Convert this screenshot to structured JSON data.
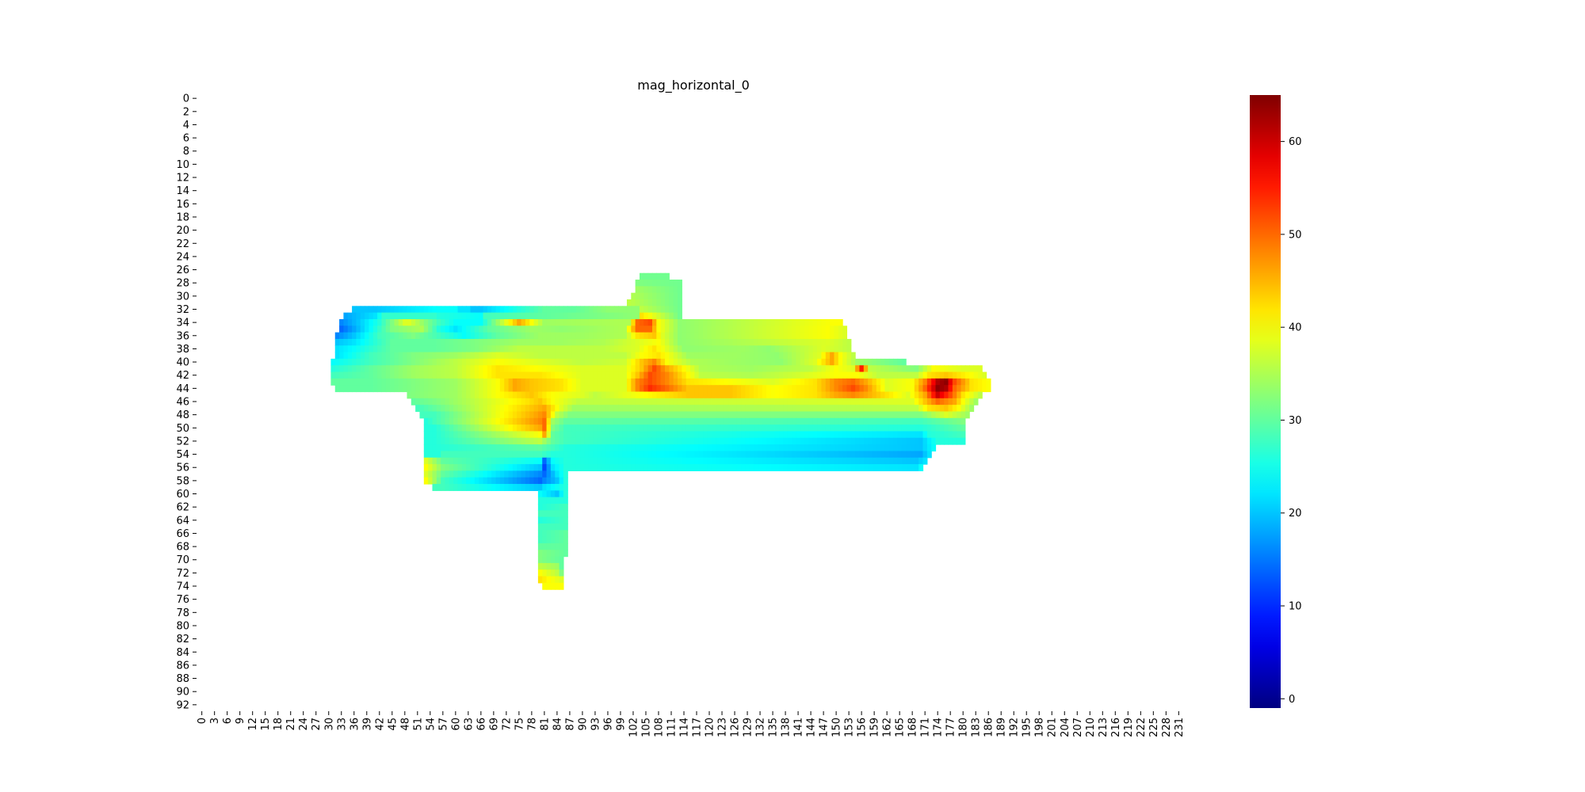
{
  "chart_data": {
    "type": "heatmap",
    "title": "mag_horizontal_0",
    "xlabel": "",
    "ylabel": "",
    "x_range": [
      0,
      232
    ],
    "y_range": [
      0,
      93
    ],
    "x_tick_labels": [
      "0",
      "3",
      "6",
      "9",
      "12",
      "15",
      "18",
      "21",
      "24",
      "27",
      "30",
      "33",
      "36",
      "39",
      "42",
      "45",
      "48",
      "51",
      "54",
      "57",
      "60",
      "63",
      "66",
      "69",
      "72",
      "75",
      "78",
      "81",
      "84",
      "87",
      "90",
      "93",
      "96",
      "99",
      "102",
      "105",
      "108",
      "111",
      "114",
      "117",
      "120",
      "123",
      "126",
      "129",
      "132",
      "135",
      "138",
      "141",
      "144",
      "147",
      "150",
      "153",
      "156",
      "159",
      "162",
      "165",
      "168",
      "171",
      "174",
      "177",
      "180",
      "183",
      "186",
      "189",
      "192",
      "195",
      "198",
      "201",
      "204",
      "207",
      "210",
      "213",
      "216",
      "219",
      "222",
      "225",
      "228",
      "231"
    ],
    "y_tick_labels": [
      "0",
      "2",
      "4",
      "6",
      "8",
      "10",
      "12",
      "14",
      "16",
      "18",
      "20",
      "22",
      "24",
      "26",
      "28",
      "30",
      "32",
      "34",
      "36",
      "38",
      "40",
      "42",
      "44",
      "46",
      "48",
      "50",
      "52",
      "54",
      "56",
      "58",
      "60",
      "62",
      "64",
      "66",
      "68",
      "70",
      "72",
      "74",
      "76",
      "78",
      "80",
      "82",
      "84",
      "86",
      "88",
      "90",
      "92"
    ],
    "colormap": "jet",
    "vmin": -1,
    "vmax": 65,
    "colorbar_ticks": [
      "0",
      "10",
      "20",
      "30",
      "40",
      "50",
      "60"
    ],
    "colorbar_tick_values": [
      0,
      10,
      20,
      30,
      40,
      50,
      60
    ],
    "rows": [
      {
        "y": 27,
        "x": [
          104,
          110
        ],
        "values": [
          31,
          31
        ]
      },
      {
        "y": 28,
        "x": [
          103,
          113
        ],
        "values": [
          32,
          31
        ]
      },
      {
        "y": 29,
        "x": [
          103,
          113
        ],
        "values": [
          34,
          31
        ]
      },
      {
        "y": 30,
        "x": [
          102,
          113
        ],
        "values": [
          35,
          31
        ]
      },
      {
        "y": 31,
        "x": [
          101,
          113
        ],
        "values": [
          36,
          31
        ]
      },
      {
        "y": 32,
        "x": [
          36,
          41,
          56,
          60,
          61,
          63,
          64,
          66,
          81,
          88,
          96,
          103,
          104,
          113
        ],
        "values": [
          20,
          20,
          24,
          24,
          22,
          22,
          20,
          20,
          30,
          30,
          33,
          33,
          36,
          31
        ]
      },
      {
        "y": 33,
        "x": [
          34,
          41,
          43,
          55,
          56,
          66,
          67,
          103,
          104,
          113
        ],
        "values": [
          18,
          22,
          27,
          27,
          26,
          24,
          28,
          33,
          42,
          31
        ]
      },
      {
        "y": 34,
        "x": [
          33,
          37,
          42,
          48,
          49,
          56,
          60,
          66,
          75,
          78,
          81,
          101,
          103,
          106,
          108,
          113,
          149,
          151
        ],
        "values": [
          16,
          20,
          26,
          38,
          38,
          28,
          24,
          24,
          46,
          40,
          34,
          35,
          50,
          52,
          40,
          33,
          40,
          40
        ]
      },
      {
        "y": 35,
        "x": [
          33,
          36,
          40,
          45,
          52,
          56,
          60,
          64,
          68,
          78,
          85,
          100,
          103,
          106,
          108,
          113,
          148,
          152
        ],
        "values": [
          14,
          18,
          24,
          32,
          35,
          26,
          22,
          26,
          30,
          34,
          33,
          35,
          50,
          50,
          40,
          33,
          40,
          38
        ]
      },
      {
        "y": 36,
        "x": [
          32,
          36,
          42,
          50,
          56,
          62,
          70,
          80,
          90,
          100,
          103,
          107,
          109,
          113,
          148,
          152
        ],
        "values": [
          16,
          20,
          28,
          32,
          28,
          24,
          30,
          34,
          34,
          35,
          42,
          44,
          38,
          33,
          40,
          38
        ]
      },
      {
        "y": 37,
        "x": [
          32,
          36,
          45,
          55,
          65,
          75,
          85,
          95,
          103,
          108,
          113,
          148,
          153
        ],
        "values": [
          20,
          22,
          30,
          30,
          32,
          34,
          34,
          35,
          38,
          40,
          33,
          38,
          36
        ]
      },
      {
        "y": 38,
        "x": [
          32,
          36,
          45,
          55,
          65,
          75,
          85,
          95,
          103,
          107,
          114,
          128,
          134,
          147,
          153
        ],
        "values": [
          22,
          24,
          30,
          30,
          32,
          36,
          36,
          36,
          38,
          42,
          33,
          34,
          33,
          38,
          36
        ]
      },
      {
        "y": 39,
        "x": [
          32,
          40,
          50,
          60,
          70,
          80,
          90,
          100,
          104,
          108,
          115,
          126,
          136,
          146,
          149,
          151,
          154
        ],
        "values": [
          22,
          28,
          32,
          34,
          38,
          36,
          36,
          36,
          40,
          42,
          34,
          34,
          33,
          38,
          46,
          40,
          36
        ]
      },
      {
        "y": 40,
        "x": [
          31,
          40,
          50,
          60,
          70,
          80,
          90,
          100,
          104,
          107,
          110,
          116,
          125,
          137,
          145,
          149,
          151,
          155,
          166
        ],
        "values": [
          24,
          28,
          32,
          36,
          40,
          38,
          36,
          37,
          44,
          48,
          40,
          35,
          34,
          33,
          38,
          46,
          40,
          34,
          30
        ]
      },
      {
        "y": 41,
        "x": [
          31,
          40,
          50,
          60,
          70,
          80,
          90,
          100,
          104,
          107,
          110,
          118,
          130,
          144,
          150,
          154,
          156,
          158,
          169,
          173,
          180,
          184
        ],
        "values": [
          26,
          30,
          34,
          36,
          42,
          40,
          38,
          38,
          44,
          52,
          46,
          35,
          34,
          36,
          40,
          38,
          55,
          36,
          32,
          40,
          38,
          38
        ]
      },
      {
        "y": 42,
        "x": [
          31,
          40,
          50,
          60,
          70,
          80,
          90,
          100,
          103,
          106,
          110,
          118,
          130,
          140,
          150,
          155,
          160,
          169,
          172,
          176,
          182,
          185
        ],
        "values": [
          28,
          30,
          34,
          36,
          42,
          42,
          38,
          38,
          44,
          52,
          48,
          36,
          35,
          37,
          40,
          40,
          36,
          36,
          42,
          44,
          40,
          38
        ]
      },
      {
        "y": 43,
        "x": [
          31,
          40,
          50,
          60,
          70,
          74,
          78,
          85,
          90,
          100,
          103,
          106,
          110,
          115,
          125,
          135,
          145,
          150,
          154,
          157,
          162,
          168,
          171,
          174,
          176,
          178,
          182,
          186
        ],
        "values": [
          30,
          30,
          32,
          34,
          40,
          46,
          44,
          42,
          38,
          38,
          48,
          52,
          48,
          42,
          40,
          38,
          42,
          48,
          50,
          46,
          38,
          40,
          48,
          62,
          64,
          52,
          42,
          40
        ]
      },
      {
        "y": 44,
        "x": [
          32,
          40,
          50,
          60,
          70,
          74,
          78,
          85,
          90,
          100,
          103,
          106,
          110,
          115,
          125,
          135,
          145,
          150,
          154,
          157,
          162,
          168,
          171,
          174,
          176,
          178,
          182,
          186
        ],
        "values": [
          30,
          30,
          32,
          34,
          40,
          46,
          44,
          42,
          38,
          38,
          48,
          54,
          50,
          44,
          44,
          40,
          42,
          48,
          52,
          48,
          38,
          40,
          50,
          64,
          62,
          50,
          42,
          40
        ]
      },
      {
        "y": 45,
        "x": [
          49,
          60,
          70,
          78,
          83,
          90,
          93,
          115,
          125,
          135,
          145,
          150,
          154,
          157,
          167,
          171,
          174,
          177,
          180,
          184
        ],
        "values": [
          32,
          34,
          40,
          44,
          40,
          38,
          36,
          44,
          44,
          40,
          42,
          46,
          48,
          46,
          38,
          46,
          60,
          52,
          42,
          36
        ]
      },
      {
        "y": 46,
        "x": [
          50,
          56,
          77,
          80,
          83,
          89,
          168,
          171,
          174,
          178,
          180,
          183
        ],
        "values": [
          30,
          32,
          42,
          44,
          40,
          36,
          38,
          44,
          50,
          46,
          40,
          34
        ]
      },
      {
        "y": 47,
        "x": [
          51,
          55,
          78,
          81,
          85,
          88,
          169,
          172,
          176,
          179,
          182
        ],
        "values": [
          28,
          30,
          44,
          46,
          38,
          34,
          36,
          42,
          44,
          40,
          34
        ]
      },
      {
        "y": 48,
        "x": [
          52,
          55,
          79,
          81,
          84,
          87,
          170,
          176,
          181
        ],
        "values": [
          28,
          28,
          46,
          48,
          36,
          32,
          32,
          38,
          34
        ]
      },
      {
        "y": 49,
        "x": [
          53,
          55,
          80,
          81,
          83,
          86,
          170,
          175,
          180
        ],
        "values": [
          26,
          28,
          48,
          50,
          34,
          30,
          28,
          30,
          32
        ]
      },
      {
        "y": 50,
        "x": [
          53,
          55,
          80,
          81,
          83,
          86,
          170,
          175,
          180
        ],
        "values": [
          26,
          26,
          46,
          50,
          32,
          28,
          26,
          28,
          30
        ]
      },
      {
        "y": 51,
        "x": [
          53,
          55,
          80,
          81,
          83,
          86,
          170,
          172,
          180
        ],
        "values": [
          26,
          26,
          40,
          46,
          30,
          28,
          22,
          26,
          28
        ]
      },
      {
        "y": 52,
        "x": [
          53,
          55,
          80,
          83,
          86,
          170,
          174,
          180
        ],
        "values": [
          26,
          26,
          36,
          30,
          28,
          20,
          26,
          26
        ]
      },
      {
        "y": 53,
        "x": [
          53,
          55,
          80,
          83,
          86,
          170,
          173
        ],
        "values": [
          26,
          26,
          30,
          28,
          26,
          20,
          24
        ]
      },
      {
        "y": 54,
        "x": [
          53,
          56,
          57,
          80,
          83,
          86,
          170,
          172
        ],
        "values": [
          26,
          26,
          28,
          28,
          26,
          26,
          18,
          22
        ]
      },
      {
        "y": 55,
        "x": [
          53,
          57,
          80,
          81,
          83,
          86,
          169,
          171
        ],
        "values": [
          38,
          30,
          24,
          14,
          24,
          26,
          20,
          22
        ]
      },
      {
        "y": 56,
        "x": [
          53,
          57,
          80,
          81,
          83,
          86,
          169,
          170
        ],
        "values": [
          40,
          32,
          20,
          12,
          22,
          26,
          22,
          24
        ]
      },
      {
        "y": 57,
        "x": [
          53,
          57,
          80,
          81,
          84,
          86
        ],
        "values": [
          38,
          30,
          16,
          14,
          22,
          26
        ]
      },
      {
        "y": 58,
        "x": [
          53,
          57,
          80,
          81,
          84,
          86
        ],
        "values": [
          40,
          28,
          14,
          16,
          20,
          26
        ]
      },
      {
        "y": 59,
        "x": [
          55,
          57,
          80,
          81,
          86
        ],
        "values": [
          28,
          28,
          20,
          22,
          26
        ]
      },
      {
        "y": 60,
        "x": [
          80,
          84,
          86
        ],
        "values": [
          24,
          20,
          26
        ]
      },
      {
        "y": 61,
        "x": [
          80,
          86
        ],
        "values": [
          26,
          26
        ]
      },
      {
        "y": 62,
        "x": [
          80,
          86
        ],
        "values": [
          26,
          28
        ]
      },
      {
        "y": 63,
        "x": [
          80,
          86
        ],
        "values": [
          28,
          28
        ]
      },
      {
        "y": 64,
        "x": [
          80,
          86
        ],
        "values": [
          26,
          28
        ]
      },
      {
        "y": 65,
        "x": [
          80,
          86
        ],
        "values": [
          28,
          28
        ]
      },
      {
        "y": 66,
        "x": [
          80,
          86
        ],
        "values": [
          28,
          30
        ]
      },
      {
        "y": 67,
        "x": [
          80,
          86
        ],
        "values": [
          28,
          30
        ]
      },
      {
        "y": 68,
        "x": [
          80,
          86
        ],
        "values": [
          30,
          30
        ]
      },
      {
        "y": 69,
        "x": [
          80,
          86
        ],
        "values": [
          32,
          30
        ]
      },
      {
        "y": 70,
        "x": [
          80,
          85
        ],
        "values": [
          32,
          30
        ]
      },
      {
        "y": 71,
        "x": [
          80,
          84,
          85
        ],
        "values": [
          36,
          34,
          30
        ]
      },
      {
        "y": 72,
        "x": [
          80,
          84,
          85
        ],
        "values": [
          40,
          36,
          32
        ]
      },
      {
        "y": 73,
        "x": [
          80,
          85
        ],
        "values": [
          42,
          38
        ]
      },
      {
        "y": 74,
        "x": [
          81,
          85
        ],
        "values": [
          40,
          40
        ]
      }
    ]
  }
}
